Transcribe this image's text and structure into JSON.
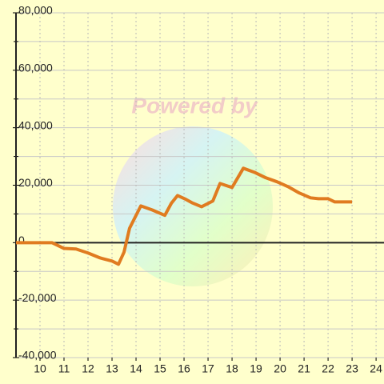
{
  "chart_data": {
    "type": "line",
    "watermark": "Powered by",
    "x": [
      9,
      10.5,
      11,
      11.5,
      12,
      12.5,
      13,
      13.27,
      13.5,
      13.73,
      14.2,
      14.67,
      15.2,
      15.47,
      15.73,
      16.07,
      16.33,
      16.73,
      17.2,
      17.5,
      18,
      18.47,
      18.93,
      19.4,
      19.87,
      20.33,
      20.8,
      21.27,
      21.6,
      22,
      22.27,
      23
    ],
    "series": [
      {
        "color": "#e07b20",
        "values": [
          0,
          0,
          -2000,
          -2200,
          -3600,
          -5300,
          -6400,
          -7500,
          -3300,
          5000,
          12800,
          11400,
          9500,
          13700,
          16400,
          15100,
          13900,
          12500,
          14500,
          20600,
          19200,
          25900,
          24500,
          22600,
          21200,
          19500,
          17300,
          15600,
          15300,
          15300,
          14200,
          14200
        ]
      }
    ],
    "xlim": [
      9,
      24.33
    ],
    "xticks": [
      10,
      11,
      12,
      13,
      14,
      15,
      16,
      17,
      18,
      19,
      20,
      21,
      22,
      23,
      24
    ],
    "ylim": [
      -40000,
      80000
    ],
    "yticks": [
      {
        "value": -40000,
        "label": "-40,000"
      },
      {
        "value": -20000,
        "label": "-20,000"
      },
      0,
      {
        "value": 20000,
        "label": "20,000"
      },
      {
        "value": 40000,
        "label": "40,000"
      },
      {
        "value": 60000,
        "label": "60,000"
      },
      {
        "value": 80000,
        "label": "80,000"
      }
    ],
    "minor_yticks": [
      -30000,
      -10000,
      10000,
      30000,
      50000,
      70000
    ],
    "grid": true
  }
}
